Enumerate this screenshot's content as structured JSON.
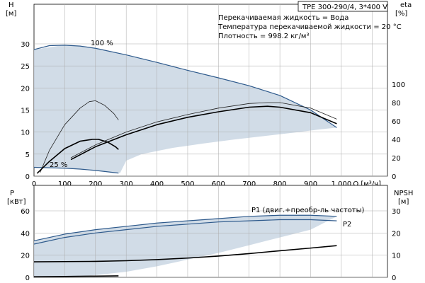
{
  "header": {
    "model": "TPE 300-290/4, 3*400 V",
    "notes": [
      "Перекачиваемая жидкость = Вода",
      "Температура перекачиваемой жидкости = 20 °C",
      "Плотность = 998.2 кг/м³"
    ]
  },
  "chart_data": [
    {
      "type": "line",
      "xlabel": "Q [м³/ч]",
      "xticks": [
        "0",
        "100",
        "200",
        "300",
        "400",
        "500",
        "600",
        "700",
        "800",
        "900",
        "1 000"
      ],
      "xlim": [
        0,
        1150
      ],
      "ylabel_left": [
        "H",
        "[м]"
      ],
      "ylim_left": [
        0,
        30
      ],
      "yticks_left": [
        "0",
        "5",
        "10",
        "15",
        "20",
        "25",
        "30"
      ],
      "ylabel_right": [
        "eta",
        "[%]"
      ],
      "ylim_right": [
        0,
        120
      ],
      "yticks_right": [
        "0",
        "20",
        "40",
        "60",
        "80",
        "100"
      ],
      "grid": true,
      "annotations": [
        "100 %",
        "25 %"
      ],
      "series": [
        {
          "role": "head_max",
          "axis": "left",
          "style": "blue",
          "x": [
            0,
            50,
            100,
            150,
            200,
            300,
            400,
            500,
            600,
            700,
            800,
            900,
            985
          ],
          "y": [
            28.7,
            29.6,
            29.7,
            29.5,
            29.0,
            27.5,
            25.8,
            24.0,
            22.3,
            20.5,
            18.3,
            15.0,
            11.0
          ]
        },
        {
          "role": "head_min",
          "axis": "left",
          "style": "blue",
          "x": [
            0,
            50,
            100,
            150,
            200,
            250,
            275
          ],
          "y": [
            2.0,
            1.9,
            1.8,
            1.6,
            1.3,
            0.9,
            0.7
          ]
        },
        {
          "role": "eta_max_thin",
          "axis": "right",
          "style": "thin",
          "x": [
            120,
            200,
            300,
            400,
            500,
            600,
            700,
            760,
            800,
            900,
            985
          ],
          "y": [
            20,
            34,
            48,
            59,
            67,
            74,
            79,
            80,
            80,
            74,
            62
          ]
        },
        {
          "role": "eta_max_thick",
          "axis": "right",
          "style": "thick",
          "x": [
            120,
            200,
            300,
            400,
            500,
            600,
            700,
            760,
            800,
            900,
            985
          ],
          "y": [
            18,
            32,
            45,
            56,
            64,
            70,
            75,
            76,
            75,
            69,
            57
          ]
        },
        {
          "role": "eta_part_thin",
          "axis": "right",
          "style": "thin",
          "x": [
            20,
            50,
            100,
            150,
            180,
            200,
            230,
            260,
            275
          ],
          "y": [
            4,
            28,
            56,
            74,
            81,
            82,
            77,
            68,
            61
          ]
        },
        {
          "role": "eta_part_thick",
          "axis": "right",
          "style": "thick",
          "x": [
            10,
            50,
            100,
            150,
            190,
            210,
            240,
            265,
            275
          ],
          "y": [
            3,
            16,
            30,
            38,
            40,
            40,
            37,
            32,
            29
          ]
        },
        {
          "role": "envelope",
          "axis": "left",
          "style": "fill",
          "x": [
            0,
            85,
            100,
            150,
            200,
            300,
            400,
            500,
            600,
            700,
            800,
            900,
            985,
            930,
            850,
            750,
            650,
            550,
            450,
            350,
            300,
            280,
            200,
            100,
            60,
            0
          ],
          "y": [
            28.7,
            29.6,
            29.7,
            29.5,
            29.0,
            27.5,
            25.8,
            24.0,
            22.3,
            20.5,
            18.3,
            15.0,
            11.0,
            10.6,
            9.9,
            9.1,
            8.3,
            7.4,
            6.4,
            5.0,
            3.5,
            0.7,
            1.3,
            1.8,
            1.9,
            2.0
          ]
        }
      ]
    },
    {
      "type": "line",
      "xlim": [
        0,
        1150
      ],
      "ylabel_left": [
        "P",
        "[кВт]"
      ],
      "ylim_left": [
        0,
        60
      ],
      "yticks_left": [
        "0",
        "20",
        "40",
        "60"
      ],
      "ylabel_right": [
        "NPSH",
        "[м]"
      ],
      "ylim_right": [
        0,
        30
      ],
      "yticks_right": [
        "0",
        "10",
        "20",
        "30"
      ],
      "grid": true,
      "annotations": [
        "P1 (двиг.+преобр-ль частоты)",
        "P2"
      ],
      "series": [
        {
          "name": "P1 (двиг.+преобр-ль частоты)",
          "axis": "left",
          "style": "blue",
          "x": [
            0,
            100,
            200,
            300,
            400,
            500,
            600,
            700,
            800,
            900,
            985
          ],
          "y": [
            33,
            39,
            43,
            46,
            49,
            51,
            53,
            55,
            56,
            56,
            55
          ]
        },
        {
          "name": "P2",
          "axis": "left",
          "style": "blue",
          "x": [
            0,
            100,
            200,
            300,
            400,
            500,
            600,
            700,
            800,
            900,
            985
          ],
          "y": [
            30,
            36,
            40,
            43,
            46,
            48,
            50,
            51,
            52,
            52,
            51
          ]
        },
        {
          "role": "npsh",
          "axis": "right",
          "style": "thick",
          "x": [
            0,
            100,
            200,
            300,
            400,
            500,
            600,
            700,
            800,
            900,
            985
          ],
          "y": [
            7,
            7.1,
            7.2,
            7.5,
            8.0,
            8.7,
            9.6,
            10.7,
            12.0,
            13.2,
            14.3
          ]
        },
        {
          "role": "power_min",
          "axis": "left",
          "style": "thick",
          "x": [
            0,
            100,
            200,
            275
          ],
          "y": [
            0.5,
            0.8,
            1.1,
            1.3
          ]
        },
        {
          "role": "envelope",
          "axis": "left",
          "style": "fill",
          "x": [
            0,
            100,
            200,
            300,
            400,
            500,
            600,
            700,
            800,
            900,
            985,
            900,
            800,
            700,
            600,
            500,
            400,
            300,
            200,
            100,
            0
          ],
          "y": [
            33,
            39,
            43,
            46,
            49,
            51,
            53,
            55,
            56,
            56,
            55,
            43,
            36,
            29,
            22,
            16,
            10,
            5,
            2,
            0.8,
            0.5
          ]
        }
      ]
    }
  ]
}
